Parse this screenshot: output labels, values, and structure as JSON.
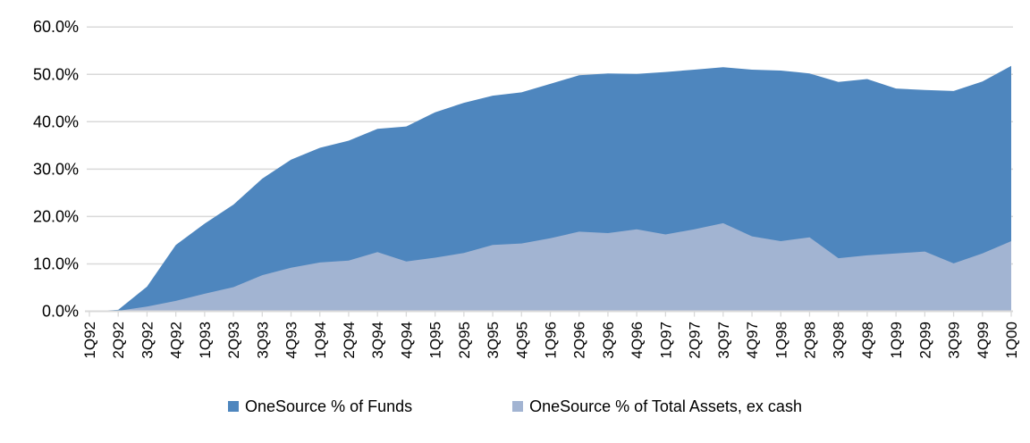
{
  "chart_data": {
    "type": "area",
    "title": "",
    "categories": [
      "1Q92",
      "2Q92",
      "3Q92",
      "4Q92",
      "1Q93",
      "2Q93",
      "3Q93",
      "4Q93",
      "1Q94",
      "2Q94",
      "3Q94",
      "4Q94",
      "1Q95",
      "2Q95",
      "3Q95",
      "4Q95",
      "1Q96",
      "2Q96",
      "3Q96",
      "4Q96",
      "1Q97",
      "2Q97",
      "3Q97",
      "4Q97",
      "1Q98",
      "2Q98",
      "3Q98",
      "4Q98",
      "1Q99",
      "2Q99",
      "3Q99",
      "4Q99",
      "1Q00"
    ],
    "series": [
      {
        "name": "OneSource % of Funds",
        "color": "#4E86BE",
        "values": [
          0.0,
          0.3,
          5.2,
          14.0,
          18.5,
          22.5,
          28.0,
          32.0,
          34.5,
          36.0,
          38.5,
          39.0,
          42.0,
          44.0,
          45.5,
          46.2,
          48.0,
          49.8,
          50.2,
          50.1,
          50.5,
          51.0,
          51.5,
          51.0,
          50.8,
          50.2,
          48.4,
          49.0,
          47.0,
          46.7,
          46.5,
          48.5,
          51.8
        ]
      },
      {
        "name": "OneSource % of Total Assets, ex cash",
        "color": "#A2B4D2",
        "values": [
          0.0,
          0.1,
          1.0,
          2.2,
          3.7,
          5.1,
          7.6,
          9.2,
          10.3,
          10.7,
          12.5,
          10.5,
          11.3,
          12.3,
          14.0,
          14.3,
          15.4,
          16.8,
          16.5,
          17.3,
          16.2,
          17.3,
          18.6,
          15.8,
          14.8,
          15.6,
          11.2,
          11.8,
          12.2,
          12.6,
          10.1,
          12.2,
          14.8
        ]
      }
    ],
    "xlabel": "",
    "ylabel": "",
    "ylim": [
      0,
      60
    ],
    "ytick_labels": [
      "0.0%",
      "10.0%",
      "20.0%",
      "30.0%",
      "40.0%",
      "50.0%",
      "60.0%"
    ],
    "grid": true,
    "legend_position": "bottom",
    "style": {
      "background": "#FFFFFF",
      "gridline_color": "#D9D9D9",
      "axis_color": "#D9D9D9",
      "text_color": "#000000"
    }
  }
}
